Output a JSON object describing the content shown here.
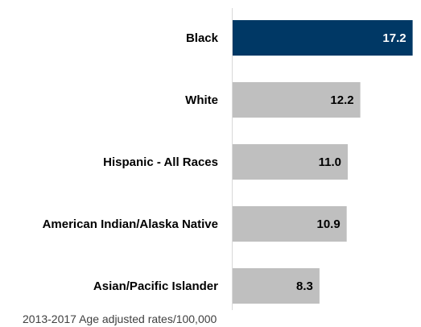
{
  "chart_data": {
    "type": "bar",
    "orientation": "horizontal",
    "categories": [
      "Black",
      "White",
      "Hispanic - All Races",
      "American Indian/Alaska Native",
      "Asian/Pacific Islander"
    ],
    "values": [
      17.2,
      12.2,
      11.0,
      10.9,
      8.3
    ],
    "value_labels": [
      "17.2",
      "12.2",
      "11.0",
      "10.9",
      "8.3"
    ],
    "xlim": [
      0,
      18
    ],
    "grid": false,
    "legend": "none",
    "colors": {
      "highlight": "#003865",
      "default": "#BFBFBF",
      "axis": "#D9D9D9",
      "label_on_highlight": "#ffffff",
      "label_default": "#000000"
    },
    "highlight_index": 0,
    "footnote": "2013-2017 Age adjusted rates/100,000"
  }
}
